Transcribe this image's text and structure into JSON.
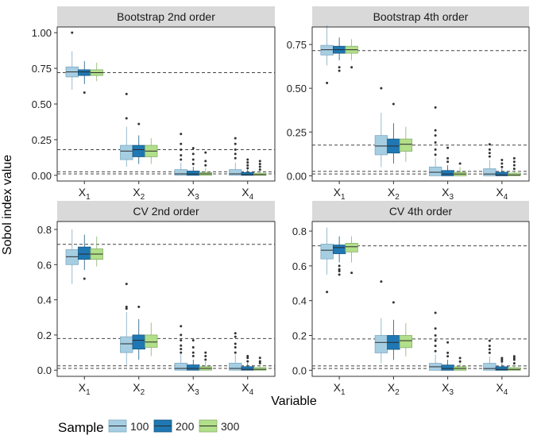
{
  "chart_data": {
    "type": "boxplot",
    "ylabel": "Sobol index value",
    "xlabel": "Variable",
    "legend": {
      "title": "Sample",
      "position": "bottom",
      "items": [
        "100",
        "200",
        "300"
      ],
      "colors": [
        "#a6cee3",
        "#1f78b4",
        "#b2df8a"
      ]
    },
    "x_base": "X",
    "categories": [
      "1",
      "2",
      "3",
      "4"
    ],
    "panels": [
      {
        "title": "Bootstrap 2nd order",
        "ylim": [
          -0.04,
          1.04
        ],
        "yticks": [
          0.0,
          0.25,
          0.5,
          0.75,
          1.0
        ],
        "tick_labels": [
          "0.00",
          "0.25",
          "0.50",
          "0.75",
          "1.00"
        ],
        "ref_lines": [
          0.72,
          0.18,
          0.025,
          0.01
        ],
        "boxes": [
          [
            {
              "q1": 0.69,
              "median": 0.725,
              "q3": 0.76,
              "wlo": 0.6,
              "whi": 0.87,
              "outliers": [
                1.0
              ]
            },
            {
              "q1": 0.7,
              "median": 0.725,
              "q3": 0.74,
              "wlo": 0.64,
              "whi": 0.8,
              "outliers": [
                0.58
              ]
            },
            {
              "q1": 0.7,
              "median": 0.72,
              "q3": 0.74,
              "wlo": 0.66,
              "whi": 0.79,
              "outliers": []
            }
          ],
          [
            {
              "q1": 0.11,
              "median": 0.17,
              "q3": 0.21,
              "wlo": 0.06,
              "whi": 0.34,
              "outliers": [
                0.4,
                0.57
              ]
            },
            {
              "q1": 0.13,
              "median": 0.18,
              "q3": 0.21,
              "wlo": 0.08,
              "whi": 0.28,
              "outliers": [
                0.36
              ]
            },
            {
              "q1": 0.13,
              "median": 0.17,
              "q3": 0.21,
              "wlo": 0.08,
              "whi": 0.26,
              "outliers": []
            }
          ],
          [
            {
              "q1": 0.0,
              "median": 0.01,
              "q3": 0.04,
              "wlo": 0.0,
              "whi": 0.09,
              "outliers": [
                0.11,
                0.14,
                0.18,
                0.22,
                0.29
              ]
            },
            {
              "q1": 0.0,
              "median": 0.01,
              "q3": 0.03,
              "wlo": 0.0,
              "whi": 0.06,
              "outliers": [
                0.08,
                0.11,
                0.15,
                0.19
              ]
            },
            {
              "q1": 0.0,
              "median": 0.01,
              "q3": 0.02,
              "wlo": 0.0,
              "whi": 0.05,
              "outliers": [
                0.07,
                0.1,
                0.16
              ]
            }
          ],
          [
            {
              "q1": 0.0,
              "median": 0.01,
              "q3": 0.04,
              "wlo": 0.0,
              "whi": 0.09,
              "outliers": [
                0.12,
                0.15,
                0.18,
                0.22,
                0.26
              ]
            },
            {
              "q1": 0.0,
              "median": 0.005,
              "q3": 0.02,
              "wlo": 0.0,
              "whi": 0.04,
              "outliers": [
                0.05,
                0.07,
                0.09,
                0.11
              ]
            },
            {
              "q1": 0.0,
              "median": 0.005,
              "q3": 0.015,
              "wlo": 0.0,
              "whi": 0.03,
              "outliers": [
                0.04,
                0.06,
                0.08,
                0.1
              ]
            }
          ]
        ]
      },
      {
        "title": "Bootstrap 4th order",
        "ylim": [
          -0.03,
          0.85
        ],
        "yticks": [
          0.0,
          0.25,
          0.5,
          0.75
        ],
        "tick_labels": [
          "0.00",
          "0.25",
          "0.50",
          "0.75"
        ],
        "ref_lines": [
          0.715,
          0.175,
          0.025,
          0.01
        ],
        "boxes": [
          [
            {
              "q1": 0.69,
              "median": 0.72,
              "q3": 0.745,
              "wlo": 0.63,
              "whi": 0.86,
              "outliers": [
                0.53
              ]
            },
            {
              "q1": 0.7,
              "median": 0.72,
              "q3": 0.74,
              "wlo": 0.66,
              "whi": 0.79,
              "outliers": [
                0.6,
                0.62
              ]
            },
            {
              "q1": 0.7,
              "median": 0.72,
              "q3": 0.74,
              "wlo": 0.66,
              "whi": 0.78,
              "outliers": [
                0.62
              ]
            }
          ],
          [
            {
              "q1": 0.12,
              "median": 0.17,
              "q3": 0.23,
              "wlo": 0.05,
              "whi": 0.36,
              "outliers": [
                0.5
              ]
            },
            {
              "q1": 0.13,
              "median": 0.17,
              "q3": 0.21,
              "wlo": 0.07,
              "whi": 0.3,
              "outliers": [
                0.41
              ]
            },
            {
              "q1": 0.14,
              "median": 0.18,
              "q3": 0.21,
              "wlo": 0.08,
              "whi": 0.28,
              "outliers": []
            }
          ],
          [
            {
              "q1": 0.0,
              "median": 0.02,
              "q3": 0.05,
              "wlo": 0.0,
              "whi": 0.1,
              "outliers": [
                0.12,
                0.15,
                0.19,
                0.23,
                0.26,
                0.39
              ]
            },
            {
              "q1": 0.0,
              "median": 0.01,
              "q3": 0.03,
              "wlo": 0.0,
              "whi": 0.06,
              "outliers": [
                0.08,
                0.1,
                0.16
              ]
            },
            {
              "q1": 0.0,
              "median": 0.01,
              "q3": 0.02,
              "wlo": 0.0,
              "whi": 0.05,
              "outliers": [
                0.07
              ]
            }
          ],
          [
            {
              "q1": 0.0,
              "median": 0.01,
              "q3": 0.04,
              "wlo": 0.0,
              "whi": 0.09,
              "outliers": [
                0.11,
                0.13,
                0.15,
                0.18
              ]
            },
            {
              "q1": 0.0,
              "median": 0.005,
              "q3": 0.02,
              "wlo": 0.0,
              "whi": 0.04,
              "outliers": [
                0.05,
                0.07,
                0.09
              ]
            },
            {
              "q1": 0.0,
              "median": 0.005,
              "q3": 0.015,
              "wlo": 0.0,
              "whi": 0.03,
              "outliers": [
                0.04,
                0.06,
                0.08,
                0.1
              ]
            }
          ]
        ]
      },
      {
        "title": "CV 2nd order",
        "ylim": [
          -0.035,
          0.845
        ],
        "yticks": [
          0.0,
          0.2,
          0.4,
          0.6,
          0.8
        ],
        "tick_labels": [
          "0.0",
          "0.2",
          "0.4",
          "0.6",
          "0.8"
        ],
        "ref_lines": [
          0.715,
          0.18,
          0.025,
          0.01
        ],
        "boxes": [
          [
            {
              "q1": 0.6,
              "median": 0.645,
              "q3": 0.685,
              "wlo": 0.49,
              "whi": 0.8,
              "outliers": []
            },
            {
              "q1": 0.63,
              "median": 0.66,
              "q3": 0.7,
              "wlo": 0.57,
              "whi": 0.77,
              "outliers": [
                0.52
              ]
            },
            {
              "q1": 0.63,
              "median": 0.66,
              "q3": 0.69,
              "wlo": 0.59,
              "whi": 0.76,
              "outliers": []
            }
          ],
          [
            {
              "q1": 0.1,
              "median": 0.15,
              "q3": 0.19,
              "wlo": 0.03,
              "whi": 0.33,
              "outliers": [
                0.35,
                0.36,
                0.49
              ]
            },
            {
              "q1": 0.12,
              "median": 0.17,
              "q3": 0.2,
              "wlo": 0.06,
              "whi": 0.29,
              "outliers": [
                0.36
              ]
            },
            {
              "q1": 0.13,
              "median": 0.16,
              "q3": 0.2,
              "wlo": 0.08,
              "whi": 0.27,
              "outliers": []
            }
          ],
          [
            {
              "q1": 0.0,
              "median": 0.01,
              "q3": 0.04,
              "wlo": 0.0,
              "whi": 0.09,
              "outliers": [
                0.1,
                0.12,
                0.14,
                0.17,
                0.2,
                0.25
              ]
            },
            {
              "q1": 0.0,
              "median": 0.01,
              "q3": 0.03,
              "wlo": 0.0,
              "whi": 0.06,
              "outliers": [
                0.08,
                0.1,
                0.13,
                0.17
              ]
            },
            {
              "q1": 0.0,
              "median": 0.01,
              "q3": 0.02,
              "wlo": 0.0,
              "whi": 0.05,
              "outliers": [
                0.06,
                0.08,
                0.1
              ]
            }
          ],
          [
            {
              "q1": 0.0,
              "median": 0.01,
              "q3": 0.04,
              "wlo": 0.0,
              "whi": 0.09,
              "outliers": [
                0.1,
                0.13,
                0.15,
                0.19,
                0.21
              ]
            },
            {
              "q1": 0.0,
              "median": 0.005,
              "q3": 0.02,
              "wlo": 0.0,
              "whi": 0.04,
              "outliers": [
                0.05,
                0.07,
                0.08
              ]
            },
            {
              "q1": 0.0,
              "median": 0.005,
              "q3": 0.015,
              "wlo": 0.0,
              "whi": 0.03,
              "outliers": [
                0.04,
                0.05,
                0.07
              ]
            }
          ]
        ]
      },
      {
        "title": "CV 4th order",
        "ylim": [
          -0.035,
          0.855
        ],
        "yticks": [
          0.0,
          0.2,
          0.4,
          0.6,
          0.8
        ],
        "tick_labels": [
          "0.0",
          "0.2",
          "0.4",
          "0.6",
          "0.8"
        ],
        "ref_lines": [
          0.715,
          0.18,
          0.025,
          0.01
        ],
        "boxes": [
          [
            {
              "q1": 0.64,
              "median": 0.69,
              "q3": 0.725,
              "wlo": 0.55,
              "whi": 0.82,
              "outliers": [
                0.45
              ]
            },
            {
              "q1": 0.67,
              "median": 0.705,
              "q3": 0.72,
              "wlo": 0.62,
              "whi": 0.77,
              "outliers": [
                0.55,
                0.57,
                0.58,
                0.6
              ]
            },
            {
              "q1": 0.68,
              "median": 0.71,
              "q3": 0.73,
              "wlo": 0.62,
              "whi": 0.77,
              "outliers": [
                0.56
              ]
            }
          ],
          [
            {
              "q1": 0.1,
              "median": 0.16,
              "q3": 0.2,
              "wlo": 0.04,
              "whi": 0.3,
              "outliers": [
                0.51
              ]
            },
            {
              "q1": 0.12,
              "median": 0.16,
              "q3": 0.2,
              "wlo": 0.06,
              "whi": 0.29,
              "outliers": [
                0.39
              ]
            },
            {
              "q1": 0.13,
              "median": 0.17,
              "q3": 0.2,
              "wlo": 0.08,
              "whi": 0.27,
              "outliers": []
            }
          ],
          [
            {
              "q1": 0.0,
              "median": 0.02,
              "q3": 0.04,
              "wlo": 0.0,
              "whi": 0.09,
              "outliers": [
                0.11,
                0.14,
                0.17,
                0.2,
                0.24,
                0.33
              ]
            },
            {
              "q1": 0.0,
              "median": 0.01,
              "q3": 0.03,
              "wlo": 0.0,
              "whi": 0.06,
              "outliers": [
                0.08,
                0.1,
                0.16
              ]
            },
            {
              "q1": 0.0,
              "median": 0.01,
              "q3": 0.02,
              "wlo": 0.0,
              "whi": 0.04,
              "outliers": [
                0.05,
                0.07
              ]
            }
          ],
          [
            {
              "q1": 0.0,
              "median": 0.01,
              "q3": 0.04,
              "wlo": 0.0,
              "whi": 0.08,
              "outliers": [
                0.1,
                0.12,
                0.14,
                0.17
              ]
            },
            {
              "q1": 0.0,
              "median": 0.005,
              "q3": 0.02,
              "wlo": 0.0,
              "whi": 0.04,
              "outliers": [
                0.05,
                0.06,
                0.07
              ]
            },
            {
              "q1": 0.0,
              "median": 0.005,
              "q3": 0.015,
              "wlo": 0.0,
              "whi": 0.03,
              "outliers": [
                0.04,
                0.06,
                0.07,
                0.08
              ]
            }
          ]
        ]
      }
    ]
  }
}
